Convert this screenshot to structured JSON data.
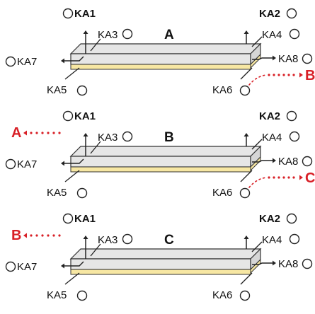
{
  "colors": {
    "bar_top": "#e6e6e6",
    "bar_edge": "#333333",
    "bar_bottom": "#f7e7a3",
    "link_red": "#d81f26",
    "text": "#111111"
  },
  "panels": [
    {
      "title": "A",
      "ka1": "KA1",
      "ka2": "KA2",
      "ka3": "KA3",
      "ka4": "KA4",
      "ka5": "KA5",
      "ka6": "KA6",
      "ka7": "KA7",
      "ka8": "KA8",
      "incoming": "",
      "outgoing": "B"
    },
    {
      "title": "B",
      "ka1": "KA1",
      "ka2": "KA2",
      "ka3": "KA3",
      "ka4": "KA4",
      "ka5": "KA5",
      "ka6": "KA6",
      "ka7": "KA7",
      "ka8": "KA8",
      "incoming": "A",
      "outgoing": "C"
    },
    {
      "title": "C",
      "ka1": "KA1",
      "ka2": "KA2",
      "ka3": "KA3",
      "ka4": "KA4",
      "ka5": "KA5",
      "ka6": "KA6",
      "ka7": "KA7",
      "ka8": "KA8",
      "incoming": "B",
      "outgoing": ""
    }
  ]
}
